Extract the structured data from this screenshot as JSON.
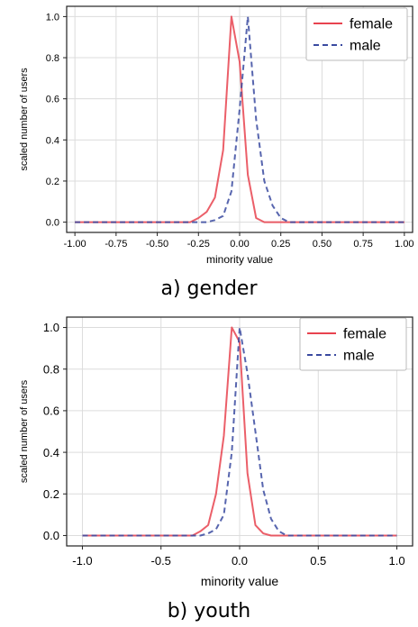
{
  "panels": [
    {
      "caption": "a) gender"
    },
    {
      "caption": "b) youth"
    }
  ],
  "chart_data": [
    {
      "type": "line",
      "title": "",
      "xlabel": "minority value",
      "ylabel": "scaled number of users",
      "xlim": [
        -1.05,
        1.05
      ],
      "ylim": [
        -0.05,
        1.05
      ],
      "xticks": [
        -1.0,
        -0.75,
        -0.5,
        -0.25,
        0.0,
        0.25,
        0.5,
        0.75,
        1.0
      ],
      "xtick_labels": [
        "-1.00",
        "-0.75",
        "-0.50",
        "-0.25",
        "0.00",
        "0.25",
        "0.50",
        "0.75",
        "1.00"
      ],
      "yticks": [
        0.0,
        0.2,
        0.4,
        0.6,
        0.8,
        1.0
      ],
      "ytick_labels": [
        "0.0",
        "0.2",
        "0.4",
        "0.6",
        "0.8",
        "1.0"
      ],
      "grid": true,
      "legend_position": "top-right",
      "series": [
        {
          "name": "female",
          "color": "#e8434f",
          "style": "solid",
          "x": [
            -1.0,
            -0.5,
            -0.3,
            -0.25,
            -0.2,
            -0.15,
            -0.1,
            -0.05,
            0.0,
            0.05,
            0.1,
            0.15,
            0.2,
            0.3,
            0.5,
            1.0
          ],
          "y": [
            0.0,
            0.0,
            0.0,
            0.02,
            0.05,
            0.12,
            0.35,
            1.0,
            0.78,
            0.23,
            0.02,
            0.0,
            0.0,
            0.0,
            0.0,
            0.0
          ]
        },
        {
          "name": "male",
          "color": "#3a4aa0",
          "style": "dashed",
          "x": [
            -1.0,
            -0.5,
            -0.25,
            -0.2,
            -0.15,
            -0.1,
            -0.05,
            0.0,
            0.05,
            0.1,
            0.15,
            0.2,
            0.25,
            0.3,
            0.5,
            1.0
          ],
          "y": [
            0.0,
            0.0,
            0.0,
            0.0,
            0.01,
            0.03,
            0.15,
            0.55,
            1.0,
            0.5,
            0.2,
            0.08,
            0.02,
            0.0,
            0.0,
            0.0
          ]
        }
      ]
    },
    {
      "type": "line",
      "title": "",
      "xlabel": "minority value",
      "ylabel": "scaled number of users",
      "xlim": [
        -1.1,
        1.1
      ],
      "ylim": [
        -0.05,
        1.05
      ],
      "xticks": [
        -1.0,
        -0.5,
        0.0,
        0.5,
        1.0
      ],
      "xtick_labels": [
        "-1.0",
        "-0.5",
        "0.0",
        "0.5",
        "1.0"
      ],
      "yticks": [
        0.0,
        0.2,
        0.4,
        0.6,
        0.8,
        1.0
      ],
      "ytick_labels": [
        "0.0",
        "0.2",
        "0.4",
        "0.6",
        "0.8",
        "1.0"
      ],
      "grid": true,
      "legend_position": "top-right",
      "series": [
        {
          "name": "female",
          "color": "#e8434f",
          "style": "solid",
          "x": [
            -1.0,
            -0.5,
            -0.3,
            -0.25,
            -0.2,
            -0.15,
            -0.1,
            -0.05,
            0.0,
            0.05,
            0.1,
            0.15,
            0.2,
            0.3,
            0.5,
            1.0
          ],
          "y": [
            0.0,
            0.0,
            0.0,
            0.02,
            0.05,
            0.2,
            0.48,
            1.0,
            0.93,
            0.3,
            0.05,
            0.01,
            0.0,
            0.0,
            0.0,
            0.0
          ]
        },
        {
          "name": "male",
          "color": "#3a4aa0",
          "style": "dashed",
          "x": [
            -1.0,
            -0.5,
            -0.25,
            -0.2,
            -0.15,
            -0.1,
            -0.05,
            0.0,
            0.05,
            0.1,
            0.15,
            0.2,
            0.25,
            0.3,
            0.5,
            1.0
          ],
          "y": [
            0.0,
            0.0,
            0.0,
            0.01,
            0.03,
            0.1,
            0.4,
            1.0,
            0.78,
            0.5,
            0.22,
            0.08,
            0.02,
            0.0,
            0.0,
            0.0
          ]
        }
      ]
    }
  ]
}
